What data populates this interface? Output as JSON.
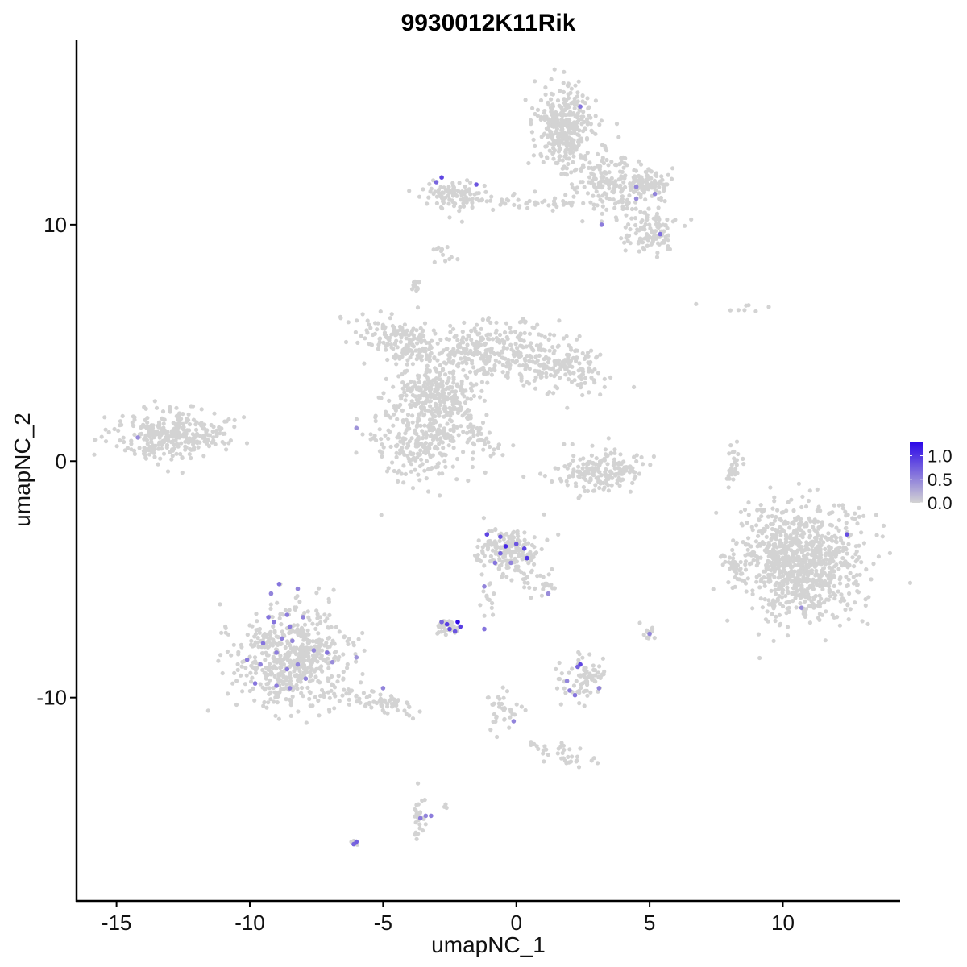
{
  "chart_data": {
    "type": "scatter",
    "title": "9930012K11Rik",
    "xlabel": "umapNC_1",
    "ylabel": "umapNC_2",
    "xlim": [
      -16.5,
      14.4
    ],
    "ylim": [
      -18.6,
      17.8
    ],
    "x_ticks": [
      -15,
      -10,
      -5,
      0,
      5,
      10
    ],
    "y_ticks": [
      -10,
      0,
      10
    ],
    "x_tick_labels": [
      "-15",
      "-10",
      "-5",
      "0",
      "5",
      "10"
    ],
    "y_tick_labels": [
      "-10",
      "0",
      "10"
    ],
    "grid": false,
    "colors": {
      "low": "#d3d3d3",
      "high": "#2a06e8"
    },
    "legend": {
      "placement": "right",
      "type": "colorbar",
      "range": [
        0.0,
        1.3
      ],
      "labels": [
        "1.0",
        "0.5",
        "0.0"
      ],
      "label_values": [
        1.0,
        0.5,
        0.0
      ]
    },
    "background_clusters": [
      {
        "cx": -12.9,
        "cy": 1.1,
        "sx": 1.0,
        "sy": 0.55,
        "n": 320,
        "tilt": 0.1
      },
      {
        "cx": -8.4,
        "cy": -8.3,
        "sx": 1.05,
        "sy": 1.05,
        "n": 560,
        "tilt": 0.0
      },
      {
        "cx": -5.5,
        "cy": -10.1,
        "sx": 0.9,
        "sy": 0.2,
        "n": 70,
        "tilt": -0.25
      },
      {
        "cx": -3.7,
        "cy": -14.9,
        "sx": 0.15,
        "sy": 0.55,
        "n": 28,
        "tilt": 0
      },
      {
        "cx": -6.1,
        "cy": -16.1,
        "sx": 0.06,
        "sy": 0.04,
        "n": 4,
        "tilt": 0
      },
      {
        "cx": -4.2,
        "cy": 5.1,
        "sx": 0.9,
        "sy": 0.45,
        "n": 180,
        "tilt": -0.35
      },
      {
        "cx": -3.3,
        "cy": 1.1,
        "sx": 1.0,
        "sy": 1.0,
        "n": 360,
        "tilt": 0
      },
      {
        "cx": -3.8,
        "cy": 7.4,
        "sx": 0.15,
        "sy": 0.15,
        "n": 14,
        "tilt": 0
      },
      {
        "cx": -3.0,
        "cy": 3.0,
        "sx": 0.7,
        "sy": 0.6,
        "n": 200,
        "tilt": 0
      },
      {
        "cx": -1.4,
        "cy": 4.6,
        "sx": 0.7,
        "sy": 0.6,
        "n": 170,
        "tilt": 0
      },
      {
        "cx": 1.2,
        "cy": 4.3,
        "sx": 1.2,
        "sy": 0.65,
        "n": 240,
        "tilt": -0.3
      },
      {
        "cx": 2.1,
        "cy": 4.0,
        "sx": 0.35,
        "sy": 0.25,
        "n": 15,
        "tilt": 0
      },
      {
        "cx": -1.4,
        "cy": 1.3,
        "sx": 1.0,
        "sy": 0.12,
        "n": 30,
        "tilt": -0.9
      },
      {
        "cx": -2.4,
        "cy": 11.3,
        "sx": 0.6,
        "sy": 0.3,
        "n": 90,
        "tilt": 0
      },
      {
        "cx": 0.4,
        "cy": 11.0,
        "sx": 1.3,
        "sy": 0.2,
        "n": 50,
        "tilt": -0.05
      },
      {
        "cx": 1.8,
        "cy": 14.1,
        "sx": 0.55,
        "sy": 0.8,
        "n": 340,
        "tilt": 0
      },
      {
        "cx": 3.6,
        "cy": 11.9,
        "sx": 0.6,
        "sy": 0.75,
        "n": 180,
        "tilt": 0.5
      },
      {
        "cx": 4.9,
        "cy": 11.8,
        "sx": 0.4,
        "sy": 0.3,
        "n": 70,
        "tilt": 0
      },
      {
        "cx": 5.0,
        "cy": 9.6,
        "sx": 0.5,
        "sy": 0.45,
        "n": 110,
        "tilt": 0
      },
      {
        "cx": -2.8,
        "cy": 8.8,
        "sx": 0.2,
        "sy": 0.3,
        "n": 12,
        "tilt": 0
      },
      {
        "cx": 3.2,
        "cy": -0.4,
        "sx": 0.8,
        "sy": 0.45,
        "n": 190,
        "tilt": 0
      },
      {
        "cx": 8.2,
        "cy": -0.2,
        "sx": 0.15,
        "sy": 0.55,
        "n": 30,
        "tilt": 0
      },
      {
        "cx": 10.7,
        "cy": -4.3,
        "sx": 1.15,
        "sy": 1.15,
        "n": 900,
        "tilt": 0
      },
      {
        "cx": 8.1,
        "cy": -4.4,
        "sx": 0.2,
        "sy": 0.4,
        "n": 25,
        "tilt": 0
      },
      {
        "cx": -0.3,
        "cy": -3.8,
        "sx": 0.6,
        "sy": 0.55,
        "n": 180,
        "tilt": 0
      },
      {
        "cx": 0.9,
        "cy": -5.1,
        "sx": 0.35,
        "sy": 0.25,
        "n": 25,
        "tilt": 0
      },
      {
        "cx": -2.6,
        "cy": -7.0,
        "sx": 0.25,
        "sy": 0.2,
        "n": 35,
        "tilt": 0
      },
      {
        "cx": -1.2,
        "cy": -5.8,
        "sx": 0.2,
        "sy": 0.4,
        "n": 12,
        "tilt": 0
      },
      {
        "cx": 2.6,
        "cy": -9.2,
        "sx": 0.4,
        "sy": 0.45,
        "n": 80,
        "tilt": 0
      },
      {
        "cx": 5.0,
        "cy": -7.3,
        "sx": 0.12,
        "sy": 0.2,
        "n": 12,
        "tilt": 0
      },
      {
        "cx": -0.5,
        "cy": -10.5,
        "sx": 0.3,
        "sy": 0.6,
        "n": 35,
        "tilt": 0
      },
      {
        "cx": 1.8,
        "cy": -12.4,
        "sx": 0.8,
        "sy": 0.2,
        "n": 35,
        "tilt": -0.25
      },
      {
        "cx": -2.6,
        "cy": -14.5,
        "sx": 0.1,
        "sy": 0.1,
        "n": 3,
        "tilt": 0
      },
      {
        "cx": 8.5,
        "cy": 6.5,
        "sx": 0.9,
        "sy": 0.25,
        "n": 8,
        "tilt": 0
      }
    ],
    "expressing_cells": [
      {
        "x": -14.2,
        "y": 1.0,
        "value": 0.45
      },
      {
        "x": -6.0,
        "y": 1.4,
        "value": 0.4
      },
      {
        "x": -2.8,
        "y": 12.0,
        "value": 0.9
      },
      {
        "x": -3.0,
        "y": 11.8,
        "value": 0.7
      },
      {
        "x": -1.5,
        "y": 11.7,
        "value": 0.8
      },
      {
        "x": 2.4,
        "y": 15.0,
        "value": 0.6
      },
      {
        "x": 3.2,
        "y": 10.0,
        "value": 0.55
      },
      {
        "x": 4.5,
        "y": 11.1,
        "value": 0.45
      },
      {
        "x": 4.5,
        "y": 11.6,
        "value": 0.5
      },
      {
        "x": 5.2,
        "y": 11.3,
        "value": 0.5
      },
      {
        "x": 5.4,
        "y": 9.6,
        "value": 0.65
      },
      {
        "x": -1.1,
        "y": -3.1,
        "value": 0.9
      },
      {
        "x": -0.6,
        "y": -3.2,
        "value": 0.8
      },
      {
        "x": -0.4,
        "y": -3.6,
        "value": 1.1
      },
      {
        "x": 0.0,
        "y": -3.5,
        "value": 0.8
      },
      {
        "x": 0.3,
        "y": -3.7,
        "value": 0.9
      },
      {
        "x": 0.4,
        "y": -4.1,
        "value": 1.0
      },
      {
        "x": -0.6,
        "y": -3.9,
        "value": 0.7
      },
      {
        "x": -0.8,
        "y": -4.3,
        "value": 0.6
      },
      {
        "x": -0.2,
        "y": -4.3,
        "value": 0.5
      },
      {
        "x": -1.2,
        "y": -5.3,
        "value": 0.5
      },
      {
        "x": 1.2,
        "y": -5.6,
        "value": 0.45
      },
      {
        "x": -2.8,
        "y": -6.8,
        "value": 0.7
      },
      {
        "x": -2.6,
        "y": -6.9,
        "value": 0.95
      },
      {
        "x": -2.5,
        "y": -7.1,
        "value": 0.85
      },
      {
        "x": -2.2,
        "y": -6.8,
        "value": 1.25
      },
      {
        "x": -2.1,
        "y": -7.0,
        "value": 0.95
      },
      {
        "x": -2.3,
        "y": -7.2,
        "value": 0.8
      },
      {
        "x": -1.2,
        "y": -7.1,
        "value": 0.6
      },
      {
        "x": -8.9,
        "y": -5.2,
        "value": 0.6
      },
      {
        "x": -9.2,
        "y": -5.6,
        "value": 0.5
      },
      {
        "x": -8.2,
        "y": -5.4,
        "value": 0.5
      },
      {
        "x": -9.3,
        "y": -6.6,
        "value": 0.6
      },
      {
        "x": -8.6,
        "y": -6.5,
        "value": 0.55
      },
      {
        "x": -9.1,
        "y": -6.8,
        "value": 0.6
      },
      {
        "x": -8.0,
        "y": -6.6,
        "value": 0.5
      },
      {
        "x": -8.5,
        "y": -7.0,
        "value": 0.55
      },
      {
        "x": -9.5,
        "y": -7.7,
        "value": 0.6
      },
      {
        "x": -8.8,
        "y": -7.5,
        "value": 0.55
      },
      {
        "x": -8.4,
        "y": -7.6,
        "value": 0.5
      },
      {
        "x": -9.0,
        "y": -8.1,
        "value": 0.55
      },
      {
        "x": -7.6,
        "y": -8.0,
        "value": 0.5
      },
      {
        "x": -7.1,
        "y": -8.1,
        "value": 0.6
      },
      {
        "x": -10.1,
        "y": -8.4,
        "value": 0.55
      },
      {
        "x": -9.6,
        "y": -8.6,
        "value": 0.5
      },
      {
        "x": -8.6,
        "y": -8.8,
        "value": 0.55
      },
      {
        "x": -8.2,
        "y": -8.6,
        "value": 0.5
      },
      {
        "x": -7.9,
        "y": -9.2,
        "value": 0.5
      },
      {
        "x": -9.8,
        "y": -9.4,
        "value": 0.6
      },
      {
        "x": -9.0,
        "y": -9.5,
        "value": 0.55
      },
      {
        "x": -8.5,
        "y": -9.6,
        "value": 0.5
      },
      {
        "x": -6.9,
        "y": -8.5,
        "value": 0.45
      },
      {
        "x": -6.0,
        "y": -8.3,
        "value": 0.4
      },
      {
        "x": -5.0,
        "y": -9.6,
        "value": 0.5
      },
      {
        "x": -3.2,
        "y": -15.0,
        "value": 0.55
      },
      {
        "x": -3.4,
        "y": -15.0,
        "value": 0.5
      },
      {
        "x": -3.6,
        "y": -15.1,
        "value": 0.55
      },
      {
        "x": -6.0,
        "y": -16.1,
        "value": 0.75
      },
      {
        "x": -6.1,
        "y": -16.2,
        "value": 0.7
      },
      {
        "x": -0.1,
        "y": -11.0,
        "value": 0.5
      },
      {
        "x": 2.4,
        "y": -8.6,
        "value": 0.9
      },
      {
        "x": 2.3,
        "y": -8.7,
        "value": 0.7
      },
      {
        "x": 2.0,
        "y": -9.7,
        "value": 0.55
      },
      {
        "x": 2.2,
        "y": -9.9,
        "value": 0.6
      },
      {
        "x": 1.9,
        "y": -9.3,
        "value": 0.5
      },
      {
        "x": 3.1,
        "y": -9.6,
        "value": 0.5
      },
      {
        "x": 5.0,
        "y": -7.3,
        "value": 0.5
      },
      {
        "x": 12.4,
        "y": -3.1,
        "value": 0.85
      },
      {
        "x": 10.7,
        "y": -6.2,
        "value": 0.45
      }
    ]
  }
}
